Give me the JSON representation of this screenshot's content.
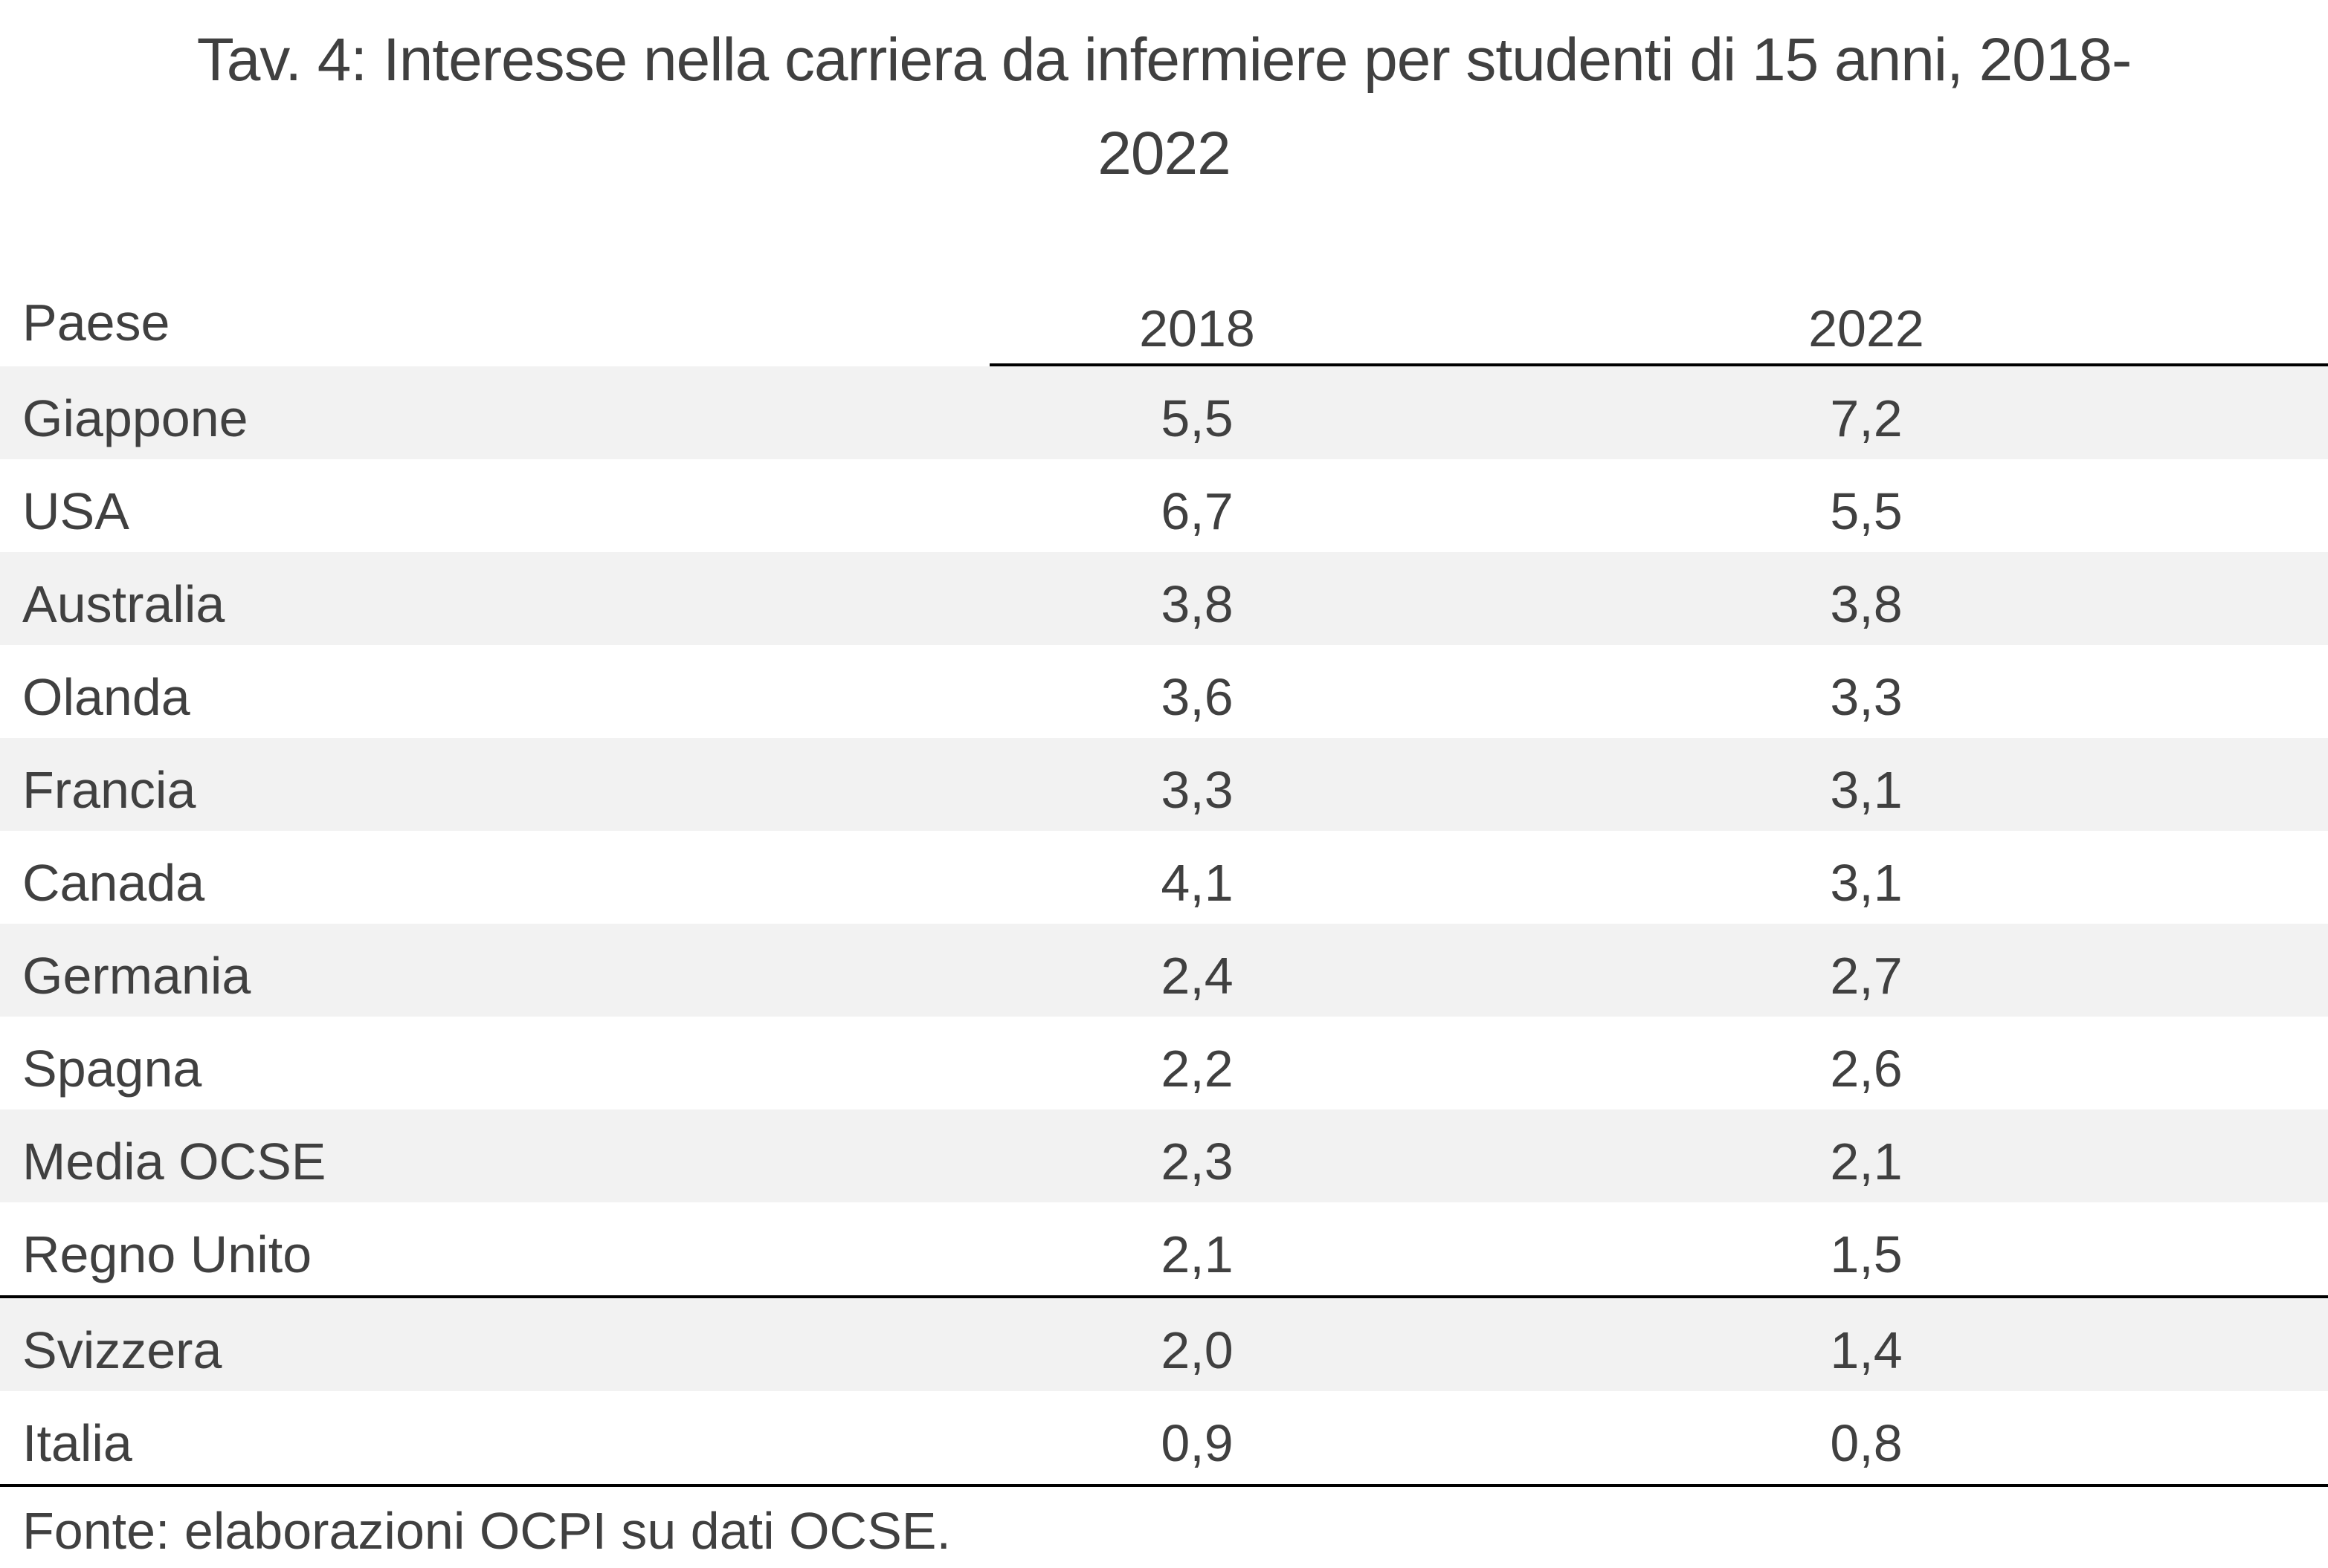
{
  "title": {
    "line1": "Tav. 4: Interesse nella carriera da infermiere per studenti di 15 anni, 2018-",
    "line2": "2022"
  },
  "table": {
    "headers": [
      "Paese",
      "2018",
      "2022"
    ],
    "rows": [
      {
        "country": "Giappone",
        "y2018": "5,5",
        "y2022": "7,2"
      },
      {
        "country": "USA",
        "y2018": "6,7",
        "y2022": "5,5"
      },
      {
        "country": "Australia",
        "y2018": "3,8",
        "y2022": "3,8"
      },
      {
        "country": "Olanda",
        "y2018": "3,6",
        "y2022": "3,3"
      },
      {
        "country": "Francia",
        "y2018": "3,3",
        "y2022": "3,1"
      },
      {
        "country": "Canada",
        "y2018": "4,1",
        "y2022": "3,1"
      },
      {
        "country": "Germania",
        "y2018": "2,4",
        "y2022": "2,7"
      },
      {
        "country": "Spagna",
        "y2018": "2,2",
        "y2022": "2,6"
      },
      {
        "country": "Media OCSE",
        "y2018": "2,3",
        "y2022": "2,1"
      },
      {
        "country": "Regno Unito",
        "y2018": "2,1",
        "y2022": "1,5"
      },
      {
        "country": "Svizzera",
        "y2018": "2,0",
        "y2022": "1,4"
      },
      {
        "country": "Italia",
        "y2018": "0,9",
        "y2022": "0,8"
      }
    ]
  },
  "source": "Fonte: elaborazioni OCPI su dati OCSE.",
  "colors": {
    "text": "#404040",
    "row_shade": "#f2f2f2",
    "rule": "#000000"
  }
}
